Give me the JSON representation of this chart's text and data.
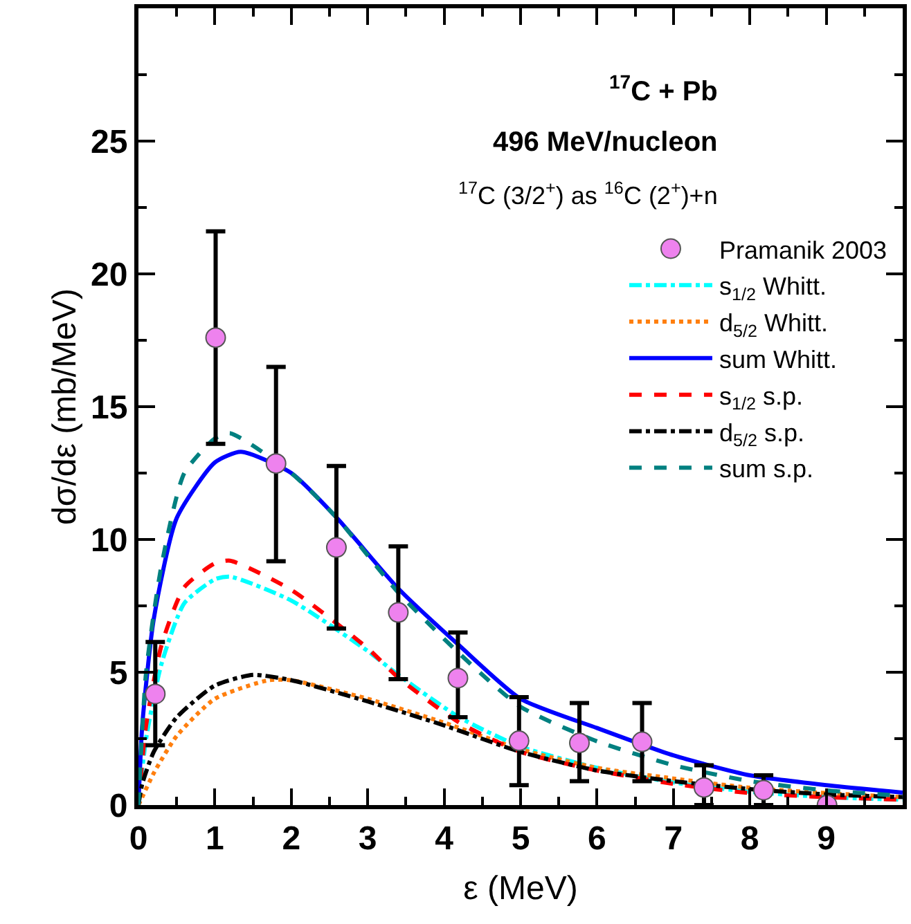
{
  "chart_data": {
    "type": "line",
    "xlabel": "ε (MeV)",
    "ylabel": "dσ/dε (mb/MeV)",
    "annotations": [
      "$^{17}$C + Pb",
      "496 MeV/nucleon",
      "$^{17}$C (3/2$^{+}$) as $^{16}$C (2$^{+}$)+n"
    ],
    "xlim": [
      0,
      10
    ],
    "xticks": [
      0,
      1,
      2,
      3,
      4,
      5,
      6,
      7,
      8,
      9
    ],
    "ylim": [
      0,
      30
    ],
    "yticks": [
      0,
      5,
      10,
      15,
      20,
      25
    ],
    "legend": "top right",
    "series": [
      {
        "name": "Pramanik 2003",
        "type": "scatter",
        "marker": "circle",
        "color": "#ee82ee",
        "x": [
          0.22,
          1.01,
          1.8,
          2.59,
          3.4,
          4.18,
          4.98,
          5.77,
          6.59,
          7.4,
          8.18,
          9.01
        ],
        "values": [
          4.18,
          17.6,
          12.86,
          9.7,
          7.25,
          4.78,
          2.42,
          2.34,
          2.38,
          0.66,
          0.56,
          0.0
        ],
        "errors": [
          [
            2.25,
            6.14
          ],
          [
            13.6,
            21.6
          ],
          [
            9.18,
            16.5
          ],
          [
            6.65,
            12.77
          ],
          [
            4.74,
            9.74
          ],
          [
            3.31,
            6.5
          ],
          [
            0.75,
            4.06
          ],
          [
            0.9,
            3.84
          ],
          [
            0.9,
            3.84
          ],
          [
            0.0,
            1.5
          ],
          [
            0.0,
            1.12
          ],
          null
        ]
      },
      {
        "name": "s$_{1/2}$ Whitt.",
        "color": "#00ffff",
        "line_style": "dashdot",
        "x": [
          0,
          0.1,
          0.3,
          0.6,
          1.0,
          1.2,
          2,
          3,
          3.4,
          4.2,
          5,
          6,
          7,
          8,
          9,
          10
        ],
        "values": [
          0,
          2.5,
          5.3,
          7.6,
          8.5,
          8.6,
          7.7,
          5.8,
          4.9,
          3.3,
          2.2,
          1.4,
          0.85,
          0.5,
          0.3,
          0.2
        ]
      },
      {
        "name": "d$_{5/2}$ Whitt.",
        "color": "#ff7f0e",
        "line_style": "dotted",
        "x": [
          0,
          0.05,
          0.2,
          0.5,
          1.0,
          1.7,
          2,
          3,
          4,
          5,
          6,
          7,
          8,
          9,
          10
        ],
        "values": [
          0,
          0.3,
          1.2,
          2.6,
          4.0,
          4.7,
          4.7,
          4.0,
          3.1,
          2.1,
          1.4,
          1.0,
          0.65,
          0.45,
          0.3
        ]
      },
      {
        "name": "sum Whitt.",
        "color": "#0000ff",
        "line_style": "solid",
        "x": [
          0,
          0.05,
          0.2,
          0.5,
          1.0,
          1.34,
          2,
          2.6,
          3.4,
          4.2,
          5,
          6,
          7,
          8,
          9,
          10
        ],
        "values": [
          0,
          3,
          7,
          10.8,
          12.9,
          13.3,
          12.5,
          10.8,
          8.15,
          6.0,
          4.0,
          2.9,
          1.87,
          1.12,
          0.75,
          0.47
        ]
      },
      {
        "name": "s$_{1/2}$ s.p.",
        "color": "#ff0000",
        "line_style": "dashed",
        "x": [
          0,
          0.1,
          0.3,
          0.6,
          1.0,
          1.2,
          2,
          3,
          3.4,
          4.2,
          5,
          6,
          7,
          8,
          9,
          10
        ],
        "values": [
          0,
          3,
          6,
          8.2,
          9.1,
          9.2,
          8.1,
          5.9,
          4.8,
          3.1,
          2.0,
          1.3,
          0.8,
          0.45,
          0.3,
          0.2
        ]
      },
      {
        "name": "d$_{5/2}$ s.p.",
        "color": "#000000",
        "line_style": "dashdot",
        "x": [
          0,
          0.05,
          0.2,
          0.5,
          1.0,
          1.5,
          2,
          3,
          4,
          5,
          6,
          7,
          8,
          9,
          10
        ],
        "values": [
          0,
          0.8,
          2.0,
          3.3,
          4.5,
          4.9,
          4.7,
          3.9,
          3.0,
          2.0,
          1.3,
          0.9,
          0.6,
          0.4,
          0.3
        ]
      },
      {
        "name": "sum s.p.",
        "color": "#008080",
        "line_style": "dashed",
        "x": [
          0,
          0.1,
          0.3,
          0.6,
          1.0,
          1.2,
          2,
          2.6,
          3.4,
          4.2,
          5,
          6,
          7,
          8,
          9,
          10
        ],
        "values": [
          0,
          5,
          9,
          12.5,
          13.8,
          14.0,
          12.5,
          10.8,
          8.0,
          5.7,
          3.7,
          2.4,
          1.5,
          0.9,
          0.55,
          0.35
        ]
      }
    ]
  }
}
